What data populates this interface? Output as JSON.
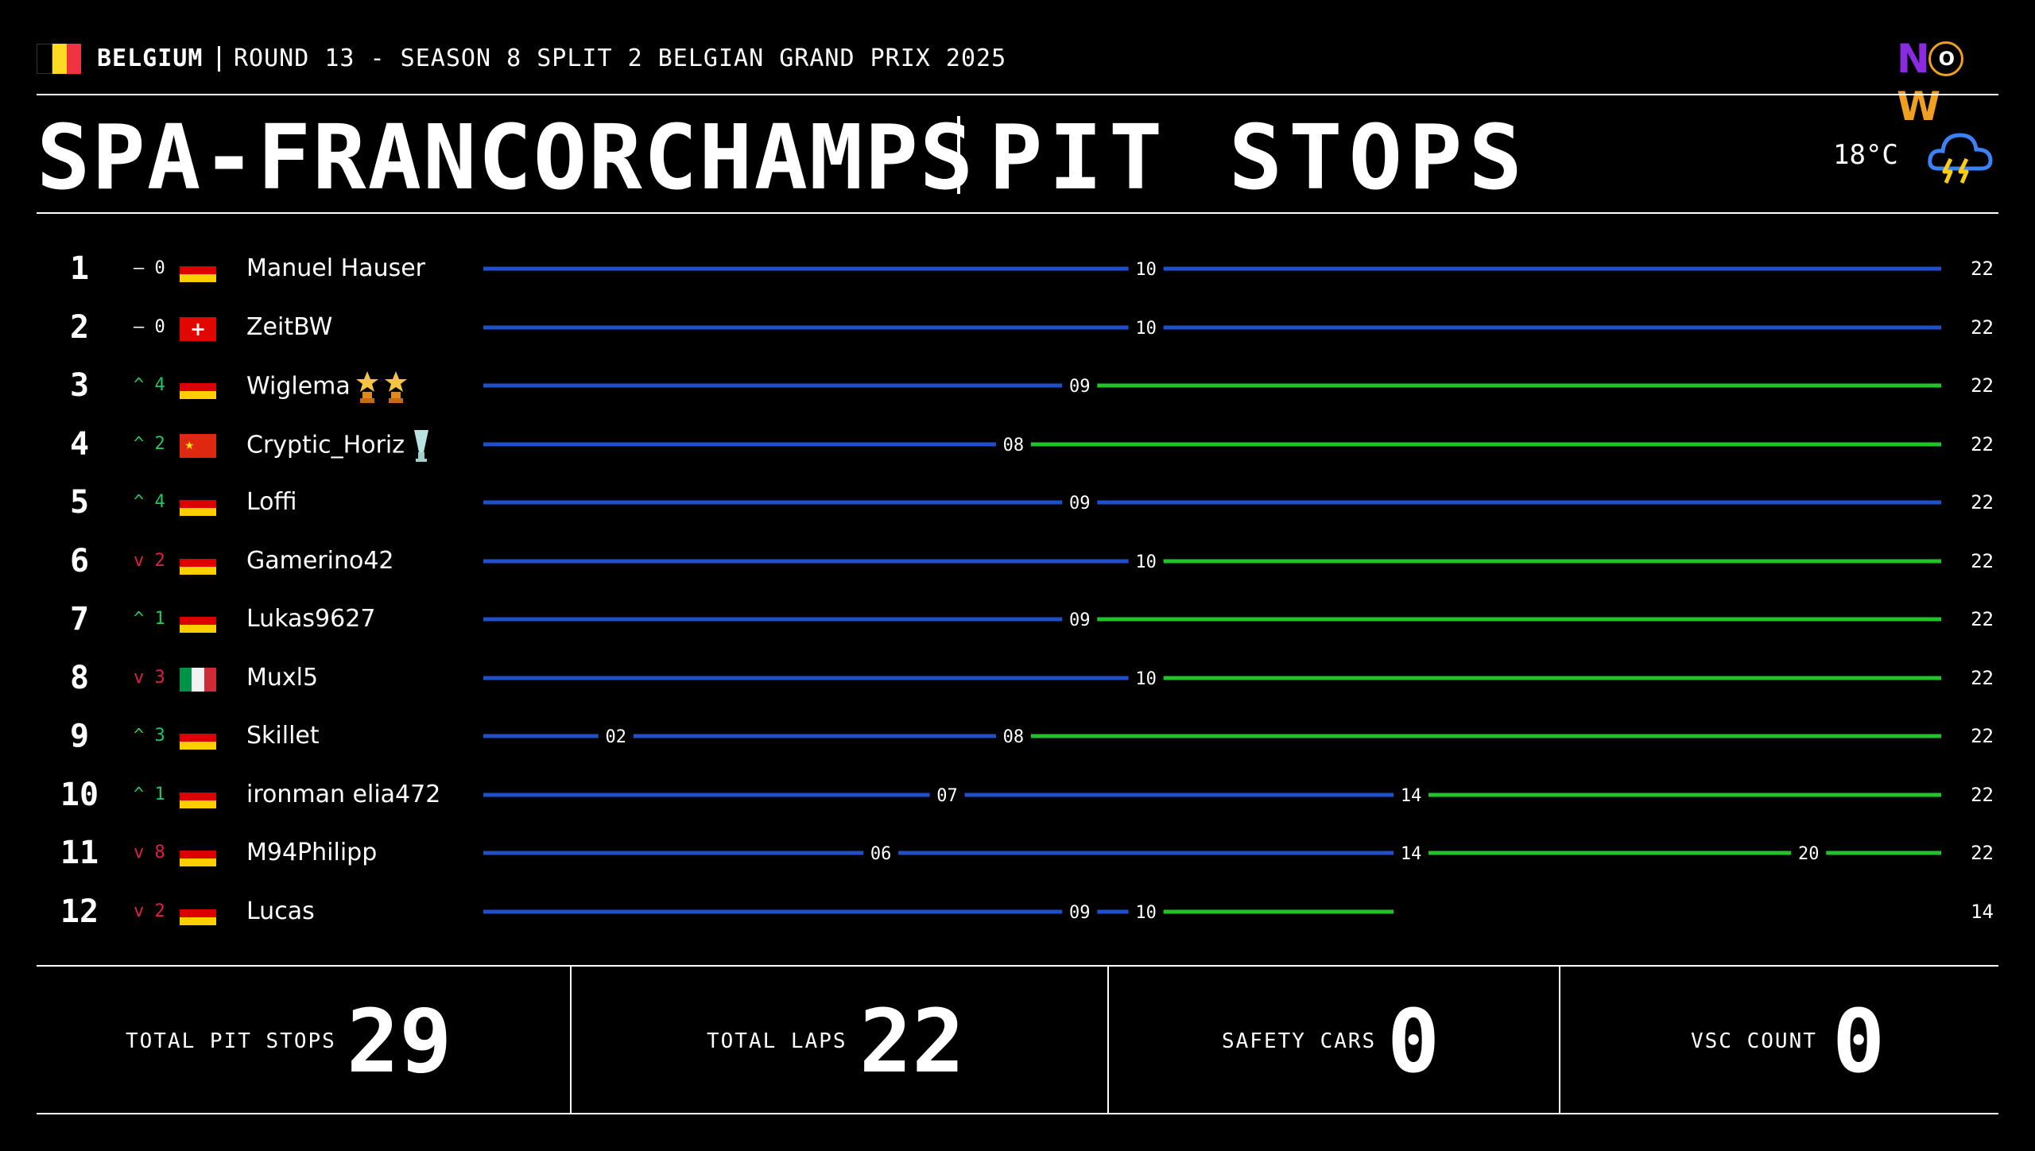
{
  "header": {
    "country": "BELGIUM",
    "event": "ROUND 13 - SEASON 8 SPLIT 2 BELGIAN GRAND PRIX 2025",
    "logo_text": [
      "N",
      "O",
      "W"
    ],
    "track": "SPA-FRANCORCHAMPS",
    "title": "PIT STOPS",
    "temperature": "18°C",
    "weather_icon": "thunderstorm-icon"
  },
  "colors": {
    "stint_blue": "#1f4fc9",
    "stint_green": "#22c32a",
    "up": "#22c55e",
    "down": "#e11d48",
    "belgium": [
      "#000000",
      "#fdda24",
      "#ef3340"
    ],
    "germany": [
      "#000000",
      "#dd0000",
      "#ffce00"
    ]
  },
  "results": [
    {
      "pos": "1",
      "dir": "same",
      "chg": "– 0",
      "flag": "de",
      "driver": "Manuel Hauser",
      "awards": [],
      "stints": [
        {
          "end": 10,
          "c": "blue"
        },
        {
          "end": 22,
          "c": "blue"
        }
      ],
      "stops": [
        "10"
      ],
      "laps": "22"
    },
    {
      "pos": "2",
      "dir": "same",
      "chg": "– 0",
      "flag": "ch",
      "driver": "ZeitBW",
      "awards": [],
      "stints": [
        {
          "end": 10,
          "c": "blue"
        },
        {
          "end": 22,
          "c": "blue"
        }
      ],
      "stops": [
        "10"
      ],
      "laps": "22"
    },
    {
      "pos": "3",
      "dir": "up",
      "chg": "^ 4",
      "flag": "de",
      "driver": "Wiglema",
      "awards": [
        "star-trophy-icon",
        "star-trophy-icon"
      ],
      "stints": [
        {
          "end": 9,
          "c": "blue"
        },
        {
          "end": 22,
          "c": "green"
        }
      ],
      "stops": [
        "09"
      ],
      "laps": "22"
    },
    {
      "pos": "4",
      "dir": "up",
      "chg": "^ 2",
      "flag": "cn",
      "driver": "Cryptic_Horiz",
      "awards": [
        "cup-trophy-icon"
      ],
      "stints": [
        {
          "end": 8,
          "c": "blue"
        },
        {
          "end": 22,
          "c": "green"
        }
      ],
      "stops": [
        "08"
      ],
      "laps": "22"
    },
    {
      "pos": "5",
      "dir": "up",
      "chg": "^ 4",
      "flag": "de",
      "driver": "Loffi",
      "awards": [],
      "stints": [
        {
          "end": 9,
          "c": "blue"
        },
        {
          "end": 22,
          "c": "blue"
        }
      ],
      "stops": [
        "09"
      ],
      "laps": "22"
    },
    {
      "pos": "6",
      "dir": "down",
      "chg": "v 2",
      "flag": "de",
      "driver": "Gamerino42",
      "awards": [],
      "stints": [
        {
          "end": 10,
          "c": "blue"
        },
        {
          "end": 22,
          "c": "green"
        }
      ],
      "stops": [
        "10"
      ],
      "laps": "22"
    },
    {
      "pos": "7",
      "dir": "up",
      "chg": "^ 1",
      "flag": "de",
      "driver": "Lukas9627",
      "awards": [],
      "stints": [
        {
          "end": 9,
          "c": "blue"
        },
        {
          "end": 22,
          "c": "green"
        }
      ],
      "stops": [
        "09"
      ],
      "laps": "22"
    },
    {
      "pos": "8",
      "dir": "down",
      "chg": "v 3",
      "flag": "it",
      "driver": "Muxl5",
      "awards": [],
      "stints": [
        {
          "end": 10,
          "c": "blue"
        },
        {
          "end": 22,
          "c": "green"
        }
      ],
      "stops": [
        "10"
      ],
      "laps": "22"
    },
    {
      "pos": "9",
      "dir": "up",
      "chg": "^ 3",
      "flag": "de",
      "driver": "Skillet",
      "awards": [],
      "stints": [
        {
          "end": 2,
          "c": "blue"
        },
        {
          "end": 8,
          "c": "blue"
        },
        {
          "end": 22,
          "c": "green"
        }
      ],
      "stops": [
        "02",
        "08"
      ],
      "laps": "22"
    },
    {
      "pos": "10",
      "dir": "up",
      "chg": "^ 1",
      "flag": "de",
      "driver": "ironman elia472",
      "awards": [],
      "stints": [
        {
          "end": 7,
          "c": "blue"
        },
        {
          "end": 14,
          "c": "blue"
        },
        {
          "end": 22,
          "c": "green"
        }
      ],
      "stops": [
        "07",
        "14"
      ],
      "laps": "22"
    },
    {
      "pos": "11",
      "dir": "down",
      "chg": "v 8",
      "flag": "de",
      "driver": "M94Philipp",
      "awards": [],
      "stints": [
        {
          "end": 6,
          "c": "blue"
        },
        {
          "end": 14,
          "c": "blue"
        },
        {
          "end": 20,
          "c": "green"
        },
        {
          "end": 22,
          "c": "green"
        }
      ],
      "stops": [
        "06",
        "14",
        "20"
      ],
      "laps": "22"
    },
    {
      "pos": "12",
      "dir": "down",
      "chg": "v 2",
      "flag": "de",
      "driver": "Lucas",
      "awards": [],
      "stints": [
        {
          "end": 9,
          "c": "blue"
        },
        {
          "end": 10,
          "c": "blue"
        },
        {
          "end": 14,
          "c": "green"
        }
      ],
      "stops": [
        "09",
        "10"
      ],
      "laps": "14"
    }
  ],
  "race_laps": 22,
  "footer": {
    "pit_stops_label": "TOTAL PIT STOPS",
    "pit_stops": "29",
    "laps_label": "TOTAL LAPS",
    "laps": "22",
    "safety_cars_label": "SAFETY CARS",
    "safety_cars": "0",
    "vsc_label": "VSC COUNT",
    "vsc": "0"
  }
}
